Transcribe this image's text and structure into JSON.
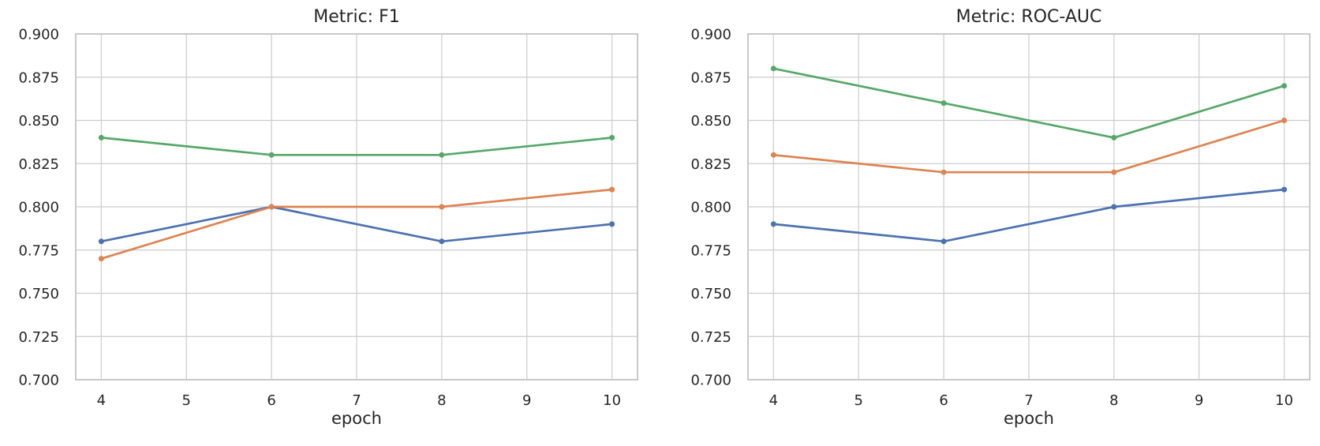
{
  "figure": {
    "background": "#ffffff",
    "text_color": "#262626",
    "grid_color": "#cccccc",
    "spine_color": "#c9c9c9"
  },
  "chart_data": [
    {
      "type": "line",
      "title": "Metric: F1",
      "xlabel": "epoch",
      "ylabel": "",
      "x": [
        4,
        6,
        8,
        10
      ],
      "series": [
        {
          "color": "#4C72B0",
          "values": [
            0.78,
            0.8,
            0.78,
            0.79
          ]
        },
        {
          "color": "#DD8452",
          "values": [
            0.77,
            0.8,
            0.8,
            0.81
          ]
        },
        {
          "color": "#55A868",
          "values": [
            0.84,
            0.83,
            0.83,
            0.84
          ]
        }
      ],
      "xlim": [
        3.7,
        10.3
      ],
      "ylim": [
        0.7,
        0.9
      ],
      "xticks": [
        4,
        5,
        6,
        7,
        8,
        9,
        10
      ],
      "xtick_labels": [
        "4",
        "5",
        "6",
        "7",
        "8",
        "9",
        "10"
      ],
      "yticks": [
        0.7,
        0.725,
        0.75,
        0.775,
        0.8,
        0.825,
        0.85,
        0.875,
        0.9
      ],
      "ytick_labels": [
        "0.700",
        "0.725",
        "0.750",
        "0.775",
        "0.800",
        "0.825",
        "0.850",
        "0.875",
        "0.900"
      ],
      "grid": true,
      "legend": false
    },
    {
      "type": "line",
      "title": "Metric: ROC-AUC",
      "xlabel": "epoch",
      "ylabel": "",
      "x": [
        4,
        6,
        8,
        10
      ],
      "series": [
        {
          "color": "#4C72B0",
          "values": [
            0.79,
            0.78,
            0.8,
            0.81
          ]
        },
        {
          "color": "#DD8452",
          "values": [
            0.83,
            0.82,
            0.82,
            0.85
          ]
        },
        {
          "color": "#55A868",
          "values": [
            0.88,
            0.86,
            0.84,
            0.87
          ]
        }
      ],
      "xlim": [
        3.7,
        10.3
      ],
      "ylim": [
        0.7,
        0.9
      ],
      "xticks": [
        4,
        5,
        6,
        7,
        8,
        9,
        10
      ],
      "xtick_labels": [
        "4",
        "5",
        "6",
        "7",
        "8",
        "9",
        "10"
      ],
      "yticks": [
        0.7,
        0.725,
        0.75,
        0.775,
        0.8,
        0.825,
        0.85,
        0.875,
        0.9
      ],
      "ytick_labels": [
        "0.700",
        "0.725",
        "0.750",
        "0.775",
        "0.800",
        "0.825",
        "0.850",
        "0.875",
        "0.900"
      ],
      "grid": true,
      "legend": false
    }
  ]
}
